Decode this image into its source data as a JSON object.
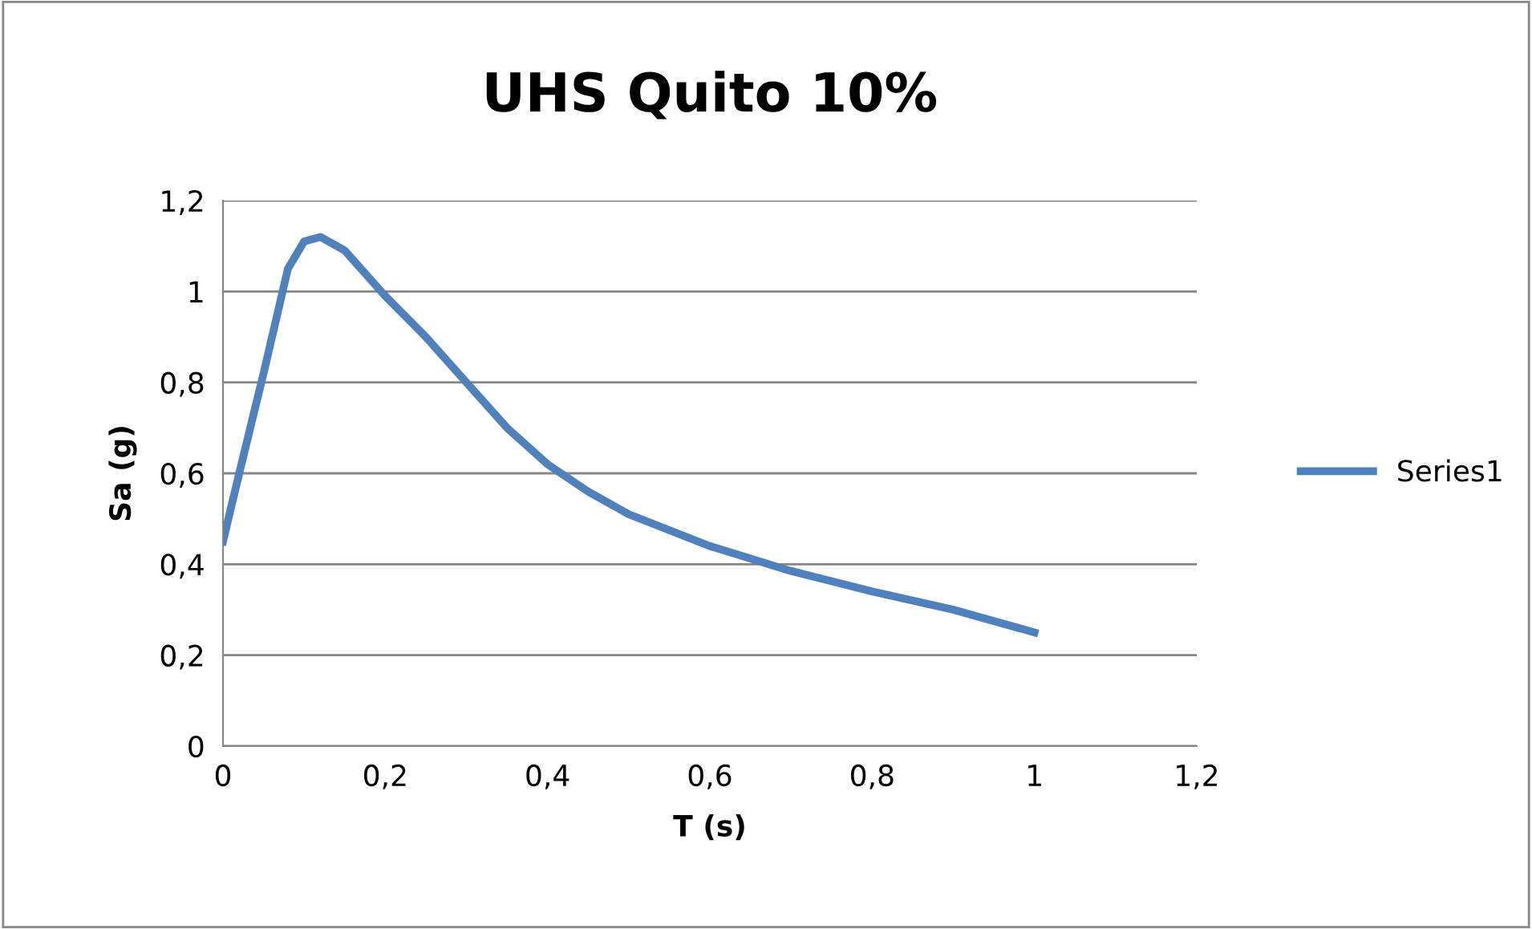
{
  "chart_data": {
    "type": "line",
    "title": "UHS Quito 10%",
    "xlabel": "T (s)",
    "ylabel": "Sa (g)",
    "series": [
      {
        "name": "Series1",
        "color": "#4f81bd",
        "x": [
          0,
          0.02,
          0.05,
          0.08,
          0.1,
          0.12,
          0.15,
          0.2,
          0.25,
          0.3,
          0.35,
          0.4,
          0.45,
          0.5,
          0.6,
          0.7,
          0.8,
          0.9,
          1.0
        ],
        "values": [
          0.45,
          0.6,
          0.82,
          1.05,
          1.11,
          1.12,
          1.09,
          0.99,
          0.9,
          0.8,
          0.7,
          0.62,
          0.56,
          0.51,
          0.44,
          0.385,
          0.34,
          0.3,
          0.25
        ]
      }
    ],
    "xlim": [
      0,
      1.2
    ],
    "ylim": [
      0,
      1.2
    ],
    "xticks": [
      0,
      {
        "value": 0.2,
        "label": "0,2"
      },
      {
        "value": 0.4,
        "label": "0,4"
      },
      {
        "value": 0.6,
        "label": "0,6"
      },
      {
        "value": 0.8,
        "label": "0,8"
      },
      1,
      {
        "value": 1.2,
        "label": "1,2"
      }
    ],
    "yticks": [
      0,
      {
        "value": 0.2,
        "label": "0,2"
      },
      {
        "value": 0.4,
        "label": "0,4"
      },
      {
        "value": 0.6,
        "label": "0,6"
      },
      {
        "value": 0.8,
        "label": "0,8"
      },
      1,
      {
        "value": 1.2,
        "label": "1,2"
      }
    ],
    "grid": "y",
    "legend": "right",
    "marker": "none",
    "line_style": "solid"
  }
}
